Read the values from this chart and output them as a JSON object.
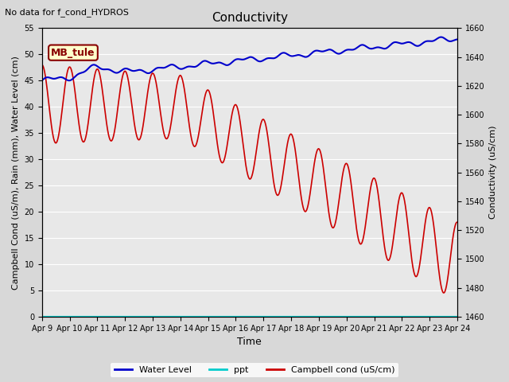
{
  "title": "Conductivity",
  "top_left_text": "No data for f_cond_HYDROS",
  "ylabel_left": "Campbell Cond (uS/m), Rain (mm), Water Level (cm)",
  "ylabel_right": "Conductivity (uS/cm)",
  "xlabel": "Time",
  "ylim_left": [
    0,
    55
  ],
  "ylim_right": [
    1460,
    1660
  ],
  "x_tick_labels": [
    "Apr 9",
    "Apr 10",
    "Apr 11",
    "Apr 12",
    "Apr 13",
    "Apr 14",
    "Apr 15",
    "Apr 16",
    "Apr 17",
    "Apr 18",
    "Apr 19",
    "Apr 20",
    "Apr 21",
    "Apr 22",
    "Apr 23",
    "Apr 24"
  ],
  "yticks_left": [
    0,
    5,
    10,
    15,
    20,
    25,
    30,
    35,
    40,
    45,
    50,
    55
  ],
  "yticks_right": [
    1460,
    1480,
    1500,
    1520,
    1540,
    1560,
    1580,
    1600,
    1620,
    1640,
    1660
  ],
  "fig_bg": "#d8d8d8",
  "plot_bg": "#e8e8e8",
  "grid_color": "white",
  "annotation": {
    "text": "MB_tule",
    "facecolor": "#ffffcc",
    "edgecolor": "#880000",
    "textcolor": "#880000",
    "fontsize": 9,
    "fontweight": "bold"
  },
  "water_level_color": "#0000cc",
  "campbell_color": "#cc0000",
  "ppt_color": "#00cccc",
  "title_fontsize": 11,
  "axis_fontsize": 8,
  "tick_fontsize": 7
}
